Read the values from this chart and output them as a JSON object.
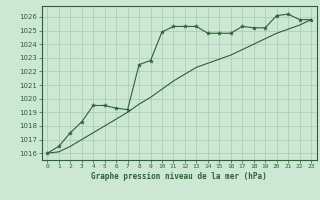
{
  "title": "Graphe pression niveau de la mer (hPa)",
  "bg_color": "#cce8d4",
  "grid_color": "#aac8b4",
  "line_color": "#2d6035",
  "ylim_min": 1015.5,
  "ylim_max": 1026.8,
  "xlim_min": -0.5,
  "xlim_max": 23.5,
  "ytick_min": 1016,
  "ytick_max": 1026,
  "xticks": [
    0,
    1,
    2,
    3,
    4,
    5,
    6,
    7,
    8,
    9,
    10,
    11,
    12,
    13,
    14,
    15,
    16,
    17,
    18,
    19,
    20,
    21,
    22,
    23
  ],
  "line1_x": [
    0,
    1,
    2,
    3,
    4,
    5,
    6,
    7,
    8,
    9,
    10,
    11,
    12,
    13,
    14,
    15,
    16,
    17,
    18,
    19,
    20,
    21,
    22,
    23
  ],
  "line1_y": [
    1016.0,
    1016.5,
    1017.5,
    1018.3,
    1019.5,
    1019.5,
    1019.3,
    1019.2,
    1022.5,
    1022.8,
    1024.9,
    1025.3,
    1025.3,
    1025.3,
    1024.8,
    1024.8,
    1024.8,
    1025.3,
    1025.2,
    1025.2,
    1026.1,
    1026.2,
    1025.8,
    1025.8
  ],
  "line2_x": [
    0,
    1,
    2,
    3,
    4,
    5,
    6,
    7,
    8,
    9,
    10,
    11,
    12,
    13,
    14,
    15,
    16,
    17,
    18,
    19,
    20,
    21,
    22,
    23
  ],
  "line2_y": [
    1016.0,
    1016.1,
    1016.5,
    1017.0,
    1017.5,
    1018.0,
    1018.5,
    1019.0,
    1019.6,
    1020.1,
    1020.7,
    1021.3,
    1021.8,
    1022.3,
    1022.6,
    1022.9,
    1023.2,
    1023.6,
    1024.0,
    1024.4,
    1024.8,
    1025.1,
    1025.4,
    1025.8
  ]
}
